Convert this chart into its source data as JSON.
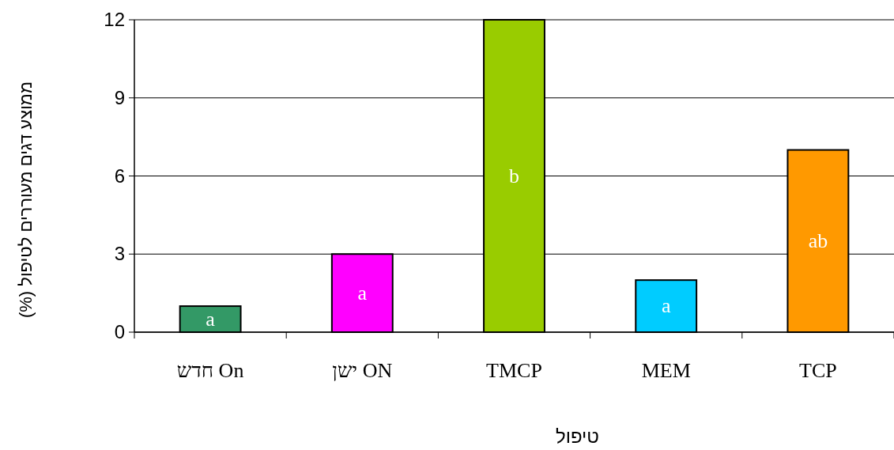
{
  "chart_data": {
    "type": "bar",
    "xlabel": "טיפול",
    "ylabel": "ממוצע דגים מעוררים לטיפול (%)",
    "categories": [
      "חדש On",
      "ישן ON",
      "TMCP",
      "MEM",
      "TCP"
    ],
    "values": [
      1,
      3,
      12,
      2,
      7
    ],
    "colors": [
      "#339966",
      "#ff00ff",
      "#99cc00",
      "#00ccff",
      "#ff9900"
    ],
    "value_labels": [
      "a",
      "a",
      "b",
      "a",
      "ab"
    ],
    "ylim": [
      0,
      12
    ],
    "yticks": [
      0,
      3,
      6,
      9,
      12
    ],
    "grid": "y"
  }
}
